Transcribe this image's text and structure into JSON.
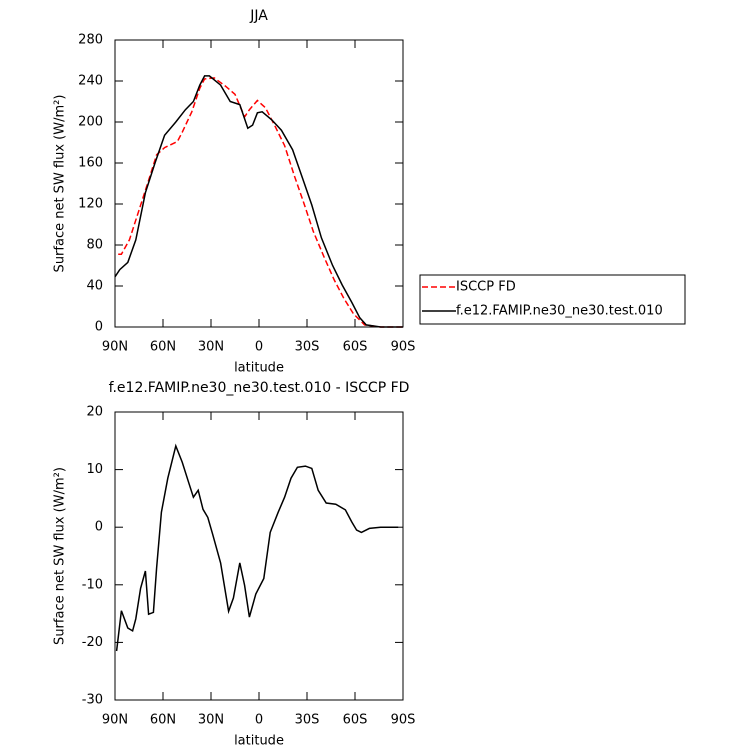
{
  "chart_data": [
    {
      "type": "line",
      "title": "JJA",
      "xlabel": "latitude",
      "ylabel": "Surface net SW flux (W/m²)",
      "xlim": [
        90,
        -90
      ],
      "xticks": [
        {
          "value": 90,
          "label": "90N"
        },
        {
          "value": 60,
          "label": "60N"
        },
        {
          "value": 30,
          "label": "30N"
        },
        0,
        {
          "value": -30,
          "label": "30S"
        },
        {
          "value": -60,
          "label": "60S"
        },
        {
          "value": -90,
          "label": "90S"
        }
      ],
      "ylim": [
        0,
        280
      ],
      "yticks": [
        0,
        40,
        80,
        120,
        160,
        200,
        240,
        280
      ],
      "legend": "right",
      "series": [
        {
          "name": "ISCCP FD",
          "color": "#ff0000",
          "dash": true,
          "x": [
            88,
            86,
            81,
            75,
            68,
            64,
            59,
            51,
            48,
            42,
            37,
            34,
            28,
            21,
            15,
            9,
            6,
            1,
            -4,
            -10,
            -16,
            -22,
            -28,
            -34,
            -41,
            -47,
            -53,
            -59,
            -66,
            -76,
            -90
          ],
          "values": [
            71,
            71,
            85,
            114,
            148,
            168,
            175,
            181,
            190,
            210,
            233,
            242,
            243,
            235,
            227,
            205,
            212,
            221,
            214,
            196,
            177,
            148,
            121,
            93,
            67,
            46,
            28,
            13,
            2,
            0,
            0
          ]
        },
        {
          "name": "f.e12.FAMIP.ne30_ne30.test.010",
          "color": "#000000",
          "dash": false,
          "x": [
            90,
            87,
            82,
            77,
            71,
            65,
            59,
            52,
            46,
            41,
            37,
            34,
            31,
            24,
            18,
            12,
            7,
            4,
            1,
            -2,
            -8,
            -14,
            -21,
            -27,
            -33,
            -39,
            -46,
            -52,
            -58,
            -63,
            -67,
            -76,
            -90
          ],
          "values": [
            49,
            56,
            63,
            85,
            131,
            160,
            187,
            200,
            212,
            220,
            236,
            245,
            245,
            236,
            220,
            217,
            194,
            197,
            209,
            210,
            202,
            192,
            173,
            146,
            119,
            87,
            60,
            41,
            24,
            9,
            2,
            0,
            0
          ]
        }
      ]
    },
    {
      "type": "line",
      "title": "f.e12.FAMIP.ne30_ne30.test.010 - ISCCP FD",
      "xlabel": "latitude",
      "ylabel": "Surface net SW flux (W/m²)",
      "xlim": [
        90,
        -90
      ],
      "xticks": [
        {
          "value": 90,
          "label": "90N"
        },
        {
          "value": 60,
          "label": "60N"
        },
        {
          "value": 30,
          "label": "30N"
        },
        0,
        {
          "value": -30,
          "label": "30S"
        },
        {
          "value": -60,
          "label": "60S"
        },
        {
          "value": -90,
          "label": "90S"
        }
      ],
      "ylim": [
        -30,
        20
      ],
      "yticks": [
        -30,
        -20,
        -10,
        0,
        10,
        20
      ],
      "series": [
        {
          "color": "#000000",
          "dash": false,
          "x": [
            89,
            86,
            82,
            79,
            77,
            74,
            71,
            69,
            66,
            64,
            61,
            57,
            52,
            48,
            44,
            41,
            38,
            35,
            32,
            29,
            24,
            19,
            16,
            12,
            9,
            6,
            2,
            -3,
            -7,
            -12,
            -16,
            -20,
            -24,
            -29,
            -33,
            -37,
            -42,
            -48,
            -54,
            -58,
            -61,
            -64,
            -69,
            -76,
            -87
          ],
          "values": [
            -21.5,
            -14.5,
            -17.5,
            -18,
            -15.9,
            -10.6,
            -7.6,
            -15.1,
            -14.8,
            -7.1,
            2.6,
            8.5,
            14.1,
            11.3,
            7.8,
            5.2,
            6.4,
            3.1,
            1.7,
            -1.2,
            -6.2,
            -14.6,
            -12.3,
            -6.2,
            -10.1,
            -15.6,
            -11.6,
            -8.9,
            -0.9,
            2.6,
            5.2,
            8.5,
            10.4,
            10.6,
            10.2,
            6.4,
            4.2,
            4.0,
            3.0,
            0.9,
            -0.5,
            -0.9,
            -0.2,
            0,
            0
          ]
        }
      ]
    }
  ]
}
